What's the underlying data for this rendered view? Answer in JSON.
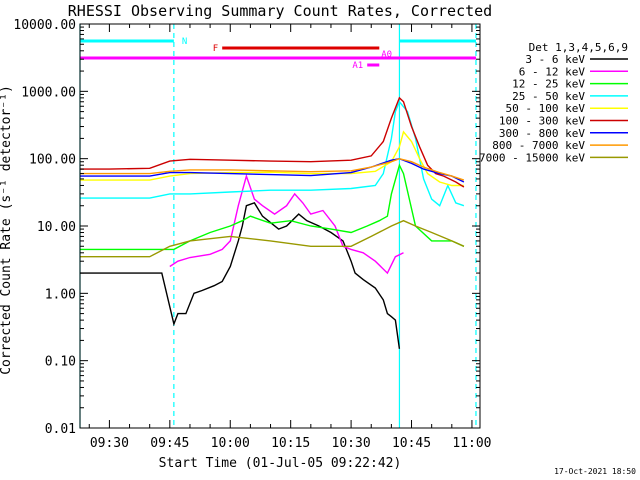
{
  "chart_data": {
    "type": "line",
    "title": "RHESSI Observing Summary Count Rates, Corrected",
    "xlabel": "Start Time (01-Jul-05 09:22:42)",
    "ylabel": "Corrected Count Rate (s⁻¹ detector⁻¹)",
    "y_scale": "log",
    "ylim": [
      0.01,
      10000
    ],
    "xlim_minutes_of_day": [
      562.7,
      662
    ],
    "x_ticks": [
      {
        "label": "09:30",
        "minutes": 570
      },
      {
        "label": "09:45",
        "minutes": 585
      },
      {
        "label": "10:00",
        "minutes": 600
      },
      {
        "label": "10:15",
        "minutes": 615
      },
      {
        "label": "10:30",
        "minutes": 630
      },
      {
        "label": "10:45",
        "minutes": 645
      },
      {
        "label": "11:00",
        "minutes": 660
      }
    ],
    "y_ticks": [
      {
        "label": "10000.00",
        "value": 10000
      },
      {
        "label": "1000.00",
        "value": 1000
      },
      {
        "label": "100.00",
        "value": 100
      },
      {
        "label": "10.00",
        "value": 10
      },
      {
        "label": "1.00",
        "value": 1
      },
      {
        "label": "0.10",
        "value": 0.1
      },
      {
        "label": "0.01",
        "value": 0.01
      }
    ],
    "legend_header": "Det 1,3,4,5,6,9",
    "legend_position": "right",
    "footer_date": "17-Oct-2021 18:50",
    "series": [
      {
        "name": "3 - 6 keV",
        "color": "#000000",
        "x": [
          562.7,
          578,
          580,
          583,
          586,
          587,
          589,
          591,
          593,
          596,
          598,
          600,
          602,
          603,
          604,
          606,
          608,
          612,
          614,
          617,
          619,
          622,
          625,
          628,
          630,
          631,
          633,
          636,
          638,
          639,
          640,
          641,
          642
        ],
        "y": [
          2.0,
          2.0,
          2.0,
          2.0,
          0.35,
          0.5,
          0.5,
          1.0,
          1.1,
          1.3,
          1.5,
          2.5,
          6,
          10,
          20,
          22,
          14,
          9,
          10,
          15,
          12,
          10,
          8,
          6,
          3,
          2.0,
          1.6,
          1.2,
          0.8,
          0.5,
          0.45,
          0.4,
          0.15
        ]
      },
      {
        "name": "6 - 12 keV",
        "color": "#ff00ff",
        "x": [
          585,
          587,
          590,
          595,
          598,
          600,
          602,
          604,
          606,
          608,
          611,
          614,
          616,
          618,
          620,
          623,
          626,
          628,
          630,
          633,
          636,
          639,
          641,
          643
        ],
        "y": [
          2.5,
          3.0,
          3.4,
          3.8,
          4.5,
          6,
          20,
          55,
          25,
          20,
          15,
          20,
          30,
          22,
          15,
          17,
          10,
          5,
          4.5,
          4.0,
          3.0,
          2.0,
          3.5,
          4.0
        ]
      },
      {
        "name": "12 - 25 keV",
        "color": "#00ff00",
        "x": [
          562.7,
          583,
          586,
          590,
          595,
          600,
          603,
          605,
          610,
          615,
          620,
          625,
          630,
          634,
          637,
          639,
          640,
          642,
          643,
          646,
          650,
          655,
          658
        ],
        "y": [
          4.5,
          4.5,
          4.5,
          6,
          8,
          10,
          12,
          14,
          11,
          12,
          10,
          9,
          8,
          10,
          12,
          14,
          30,
          80,
          60,
          10,
          6,
          6,
          5
        ]
      },
      {
        "name": "25 - 50 keV",
        "color": "#00ffff",
        "x": [
          562.7,
          570,
          580,
          585,
          590,
          600,
          610,
          620,
          630,
          636,
          638,
          640,
          641,
          642,
          644,
          646,
          648,
          650,
          652,
          654,
          656,
          658
        ],
        "y": [
          26,
          26,
          26,
          30,
          30,
          32,
          34,
          34,
          36,
          40,
          60,
          200,
          500,
          700,
          500,
          200,
          50,
          25,
          20,
          40,
          22,
          20
        ]
      },
      {
        "name": "50 - 100 keV",
        "color": "#ffff00",
        "x": [
          562.7,
          570,
          580,
          585,
          590,
          600,
          610,
          620,
          630,
          636,
          640,
          642,
          643,
          645,
          647,
          649,
          652,
          655,
          658
        ],
        "y": [
          48,
          48,
          48,
          55,
          60,
          62,
          63,
          60,
          60,
          65,
          90,
          150,
          250,
          180,
          100,
          60,
          45,
          40,
          40
        ]
      },
      {
        "name": "100 - 300 keV",
        "color": "#cc0000",
        "x": [
          562.7,
          570,
          580,
          585,
          590,
          600,
          610,
          620,
          630,
          635,
          638,
          640,
          642,
          643,
          645,
          647,
          649,
          651,
          653,
          656,
          658
        ],
        "y": [
          70,
          70,
          72,
          92,
          98,
          95,
          92,
          90,
          95,
          110,
          180,
          400,
          800,
          700,
          300,
          150,
          80,
          60,
          55,
          45,
          38
        ]
      },
      {
        "name": "300 - 800 keV",
        "color": "#0000ff",
        "x": [
          562.7,
          570,
          580,
          585,
          590,
          600,
          610,
          620,
          630,
          635,
          640,
          642,
          645,
          648,
          652,
          655,
          658
        ],
        "y": [
          55,
          55,
          55,
          62,
          62,
          60,
          58,
          56,
          62,
          75,
          95,
          100,
          85,
          70,
          60,
          55,
          45
        ]
      },
      {
        "name": "800 - 7000 keV",
        "color": "#ff9900",
        "x": [
          562.7,
          570,
          580,
          585,
          590,
          600,
          610,
          620,
          630,
          635,
          640,
          642,
          645,
          648,
          652,
          655,
          658
        ],
        "y": [
          60,
          60,
          60,
          65,
          68,
          68,
          66,
          64,
          66,
          75,
          90,
          100,
          90,
          75,
          62,
          55,
          48
        ]
      },
      {
        "name": "7000 - 15000 keV",
        "color": "#999900",
        "x": [
          562.7,
          570,
          580,
          585,
          590,
          600,
          610,
          620,
          630,
          635,
          640,
          643,
          646,
          650,
          655,
          658
        ],
        "y": [
          3.5,
          3.5,
          3.5,
          5,
          6,
          7,
          6,
          5,
          5,
          7,
          10,
          12,
          10,
          8,
          6,
          5
        ]
      }
    ],
    "annotations": [
      {
        "label": "N",
        "color": "#00ffff",
        "ranges": [
          [
            562.7,
            586
          ],
          [
            642,
            661
          ]
        ]
      },
      {
        "label": "F",
        "color": "#dd0000",
        "ranges": [
          [
            598,
            637
          ]
        ]
      },
      {
        "label": "A0",
        "color": "#ff00ff",
        "ranges": [
          [
            562.7,
            661
          ]
        ]
      },
      {
        "label": "A1",
        "color": "#ff00ff",
        "ranges": [
          [
            634,
            637
          ]
        ]
      }
    ],
    "vlines": [
      {
        "minutes": 562.7,
        "color": "#00ffff",
        "style": "solid"
      },
      {
        "minutes": 586,
        "color": "#00ffff",
        "style": "dashed"
      },
      {
        "minutes": 642,
        "color": "#00ffff",
        "style": "solid"
      },
      {
        "minutes": 661,
        "color": "#00ffff",
        "style": "dashed"
      }
    ]
  }
}
